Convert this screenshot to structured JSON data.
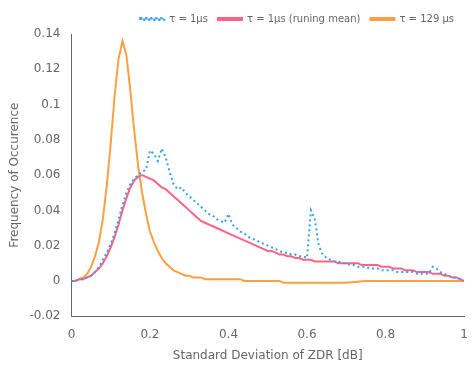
{
  "chart_data": {
    "type": "line",
    "xlabel": "Standard Deviation of ZDR [dB]",
    "ylabel": "Frequency of Occurence",
    "xlim": [
      0,
      1
    ],
    "ylim": [
      -0.02,
      0.14
    ],
    "xticks": [
      0,
      0.2,
      0.4,
      0.6,
      0.8,
      1
    ],
    "yticks": [
      -0.02,
      0,
      0.02,
      0.04,
      0.06,
      0.08,
      0.1,
      0.12,
      0.14
    ],
    "grid": false,
    "legend": "upper right",
    "marker": "none",
    "series": [
      {
        "name": "τ = 1μs",
        "line_style": "dotted",
        "x": [
          0.0,
          0.01,
          0.02,
          0.03,
          0.04,
          0.05,
          0.06,
          0.07,
          0.08,
          0.09,
          0.1,
          0.11,
          0.12,
          0.13,
          0.14,
          0.15,
          0.16,
          0.17,
          0.18,
          0.19,
          0.2,
          0.21,
          0.22,
          0.23,
          0.24,
          0.25,
          0.26,
          0.27,
          0.28,
          0.29,
          0.3,
          0.31,
          0.32,
          0.33,
          0.34,
          0.35,
          0.36,
          0.37,
          0.38,
          0.39,
          0.4,
          0.41,
          0.42,
          0.43,
          0.44,
          0.45,
          0.46,
          0.47,
          0.48,
          0.49,
          0.5,
          0.51,
          0.52,
          0.53,
          0.54,
          0.55,
          0.56,
          0.57,
          0.58,
          0.59,
          0.6,
          0.61,
          0.62,
          0.63,
          0.64,
          0.65,
          0.66,
          0.67,
          0.68,
          0.69,
          0.7,
          0.71,
          0.72,
          0.73,
          0.74,
          0.75,
          0.76,
          0.77,
          0.78,
          0.79,
          0.8,
          0.81,
          0.82,
          0.83,
          0.84,
          0.85,
          0.86,
          0.87,
          0.88,
          0.89,
          0.9,
          0.91,
          0.92,
          0.93,
          0.94,
          0.95,
          0.96,
          0.97,
          0.98,
          0.99,
          1.0
        ],
        "values": [
          0.0,
          0.0,
          0.001,
          0.001,
          0.002,
          0.003,
          0.005,
          0.008,
          0.012,
          0.016,
          0.021,
          0.027,
          0.035,
          0.043,
          0.05,
          0.055,
          0.058,
          0.06,
          0.062,
          0.063,
          0.074,
          0.072,
          0.068,
          0.075,
          0.07,
          0.062,
          0.055,
          0.052,
          0.053,
          0.05,
          0.048,
          0.046,
          0.044,
          0.042,
          0.04,
          0.038,
          0.037,
          0.035,
          0.034,
          0.033,
          0.038,
          0.032,
          0.03,
          0.028,
          0.027,
          0.025,
          0.024,
          0.023,
          0.022,
          0.021,
          0.02,
          0.019,
          0.018,
          0.017,
          0.016,
          0.016,
          0.015,
          0.015,
          0.014,
          0.014,
          0.013,
          0.04,
          0.035,
          0.02,
          0.015,
          0.013,
          0.012,
          0.011,
          0.011,
          0.01,
          0.01,
          0.009,
          0.009,
          0.008,
          0.008,
          0.008,
          0.007,
          0.007,
          0.007,
          0.006,
          0.006,
          0.006,
          0.006,
          0.005,
          0.005,
          0.005,
          0.005,
          0.005,
          0.004,
          0.004,
          0.004,
          0.004,
          0.008,
          0.007,
          0.005,
          0.004,
          0.003,
          0.002,
          0.002,
          0.001,
          0.0
        ]
      },
      {
        "name": "τ = 1μs (runing mean)",
        "line_style": "solid",
        "x": [
          0.0,
          0.01,
          0.02,
          0.03,
          0.04,
          0.05,
          0.06,
          0.07,
          0.08,
          0.09,
          0.1,
          0.11,
          0.12,
          0.13,
          0.14,
          0.15,
          0.16,
          0.17,
          0.18,
          0.19,
          0.2,
          0.21,
          0.22,
          0.23,
          0.24,
          0.25,
          0.26,
          0.27,
          0.28,
          0.29,
          0.3,
          0.31,
          0.32,
          0.33,
          0.34,
          0.35,
          0.36,
          0.37,
          0.38,
          0.39,
          0.4,
          0.41,
          0.42,
          0.43,
          0.44,
          0.45,
          0.46,
          0.47,
          0.48,
          0.49,
          0.5,
          0.51,
          0.52,
          0.53,
          0.54,
          0.55,
          0.56,
          0.57,
          0.58,
          0.59,
          0.6,
          0.61,
          0.62,
          0.63,
          0.64,
          0.65,
          0.66,
          0.67,
          0.68,
          0.69,
          0.7,
          0.71,
          0.72,
          0.73,
          0.74,
          0.75,
          0.76,
          0.77,
          0.78,
          0.79,
          0.8,
          0.81,
          0.82,
          0.83,
          0.84,
          0.85,
          0.86,
          0.87,
          0.88,
          0.89,
          0.9,
          0.91,
          0.92,
          0.93,
          0.94,
          0.95,
          0.96,
          0.97,
          0.98,
          0.99,
          1.0
        ],
        "values": [
          0.0,
          0.0,
          0.001,
          0.001,
          0.002,
          0.003,
          0.005,
          0.007,
          0.01,
          0.014,
          0.019,
          0.025,
          0.032,
          0.04,
          0.047,
          0.053,
          0.057,
          0.059,
          0.06,
          0.059,
          0.058,
          0.057,
          0.055,
          0.053,
          0.052,
          0.05,
          0.048,
          0.046,
          0.044,
          0.042,
          0.04,
          0.038,
          0.036,
          0.034,
          0.033,
          0.032,
          0.031,
          0.03,
          0.029,
          0.028,
          0.027,
          0.026,
          0.025,
          0.024,
          0.023,
          0.022,
          0.021,
          0.02,
          0.019,
          0.018,
          0.017,
          0.017,
          0.016,
          0.015,
          0.015,
          0.014,
          0.014,
          0.013,
          0.013,
          0.012,
          0.012,
          0.012,
          0.011,
          0.011,
          0.011,
          0.011,
          0.011,
          0.011,
          0.01,
          0.01,
          0.01,
          0.01,
          0.01,
          0.01,
          0.009,
          0.009,
          0.009,
          0.009,
          0.009,
          0.008,
          0.008,
          0.008,
          0.007,
          0.007,
          0.007,
          0.006,
          0.006,
          0.006,
          0.005,
          0.005,
          0.005,
          0.005,
          0.004,
          0.004,
          0.004,
          0.003,
          0.003,
          0.002,
          0.002,
          0.001,
          0.0
        ]
      },
      {
        "name": "τ = 129 μs",
        "line_style": "solid",
        "x": [
          0.0,
          0.01,
          0.02,
          0.03,
          0.04,
          0.05,
          0.06,
          0.07,
          0.08,
          0.09,
          0.1,
          0.11,
          0.12,
          0.13,
          0.14,
          0.15,
          0.16,
          0.17,
          0.18,
          0.19,
          0.2,
          0.21,
          0.22,
          0.23,
          0.24,
          0.25,
          0.26,
          0.27,
          0.28,
          0.29,
          0.3,
          0.31,
          0.32,
          0.33,
          0.34,
          0.35,
          0.36,
          0.37,
          0.38,
          0.39,
          0.4,
          0.41,
          0.42,
          0.43,
          0.44,
          0.45,
          0.46,
          0.47,
          0.48,
          0.49,
          0.5,
          0.51,
          0.52,
          0.53,
          0.54,
          0.55,
          0.56,
          0.57,
          0.58,
          0.59,
          0.6,
          0.65,
          0.7,
          0.75,
          0.8,
          0.85,
          0.9,
          0.95,
          1.0
        ],
        "values": [
          0.0,
          0.0,
          0.001,
          0.002,
          0.004,
          0.008,
          0.014,
          0.022,
          0.035,
          0.054,
          0.078,
          0.105,
          0.126,
          0.136,
          0.128,
          0.108,
          0.085,
          0.065,
          0.05,
          0.038,
          0.028,
          0.022,
          0.017,
          0.013,
          0.01,
          0.008,
          0.006,
          0.005,
          0.004,
          0.003,
          0.003,
          0.002,
          0.002,
          0.002,
          0.001,
          0.001,
          0.001,
          0.001,
          0.001,
          0.001,
          0.001,
          0.001,
          0.001,
          0.001,
          0.0,
          0.0,
          0.0,
          0.0,
          0.0,
          0.0,
          0.0,
          0.0,
          0.0,
          0.0,
          -0.001,
          -0.001,
          -0.001,
          -0.001,
          -0.001,
          -0.001,
          -0.001,
          -0.001,
          -0.001,
          0.0,
          0.0,
          0.0,
          0.0,
          0.0,
          0.0
        ]
      }
    ]
  }
}
